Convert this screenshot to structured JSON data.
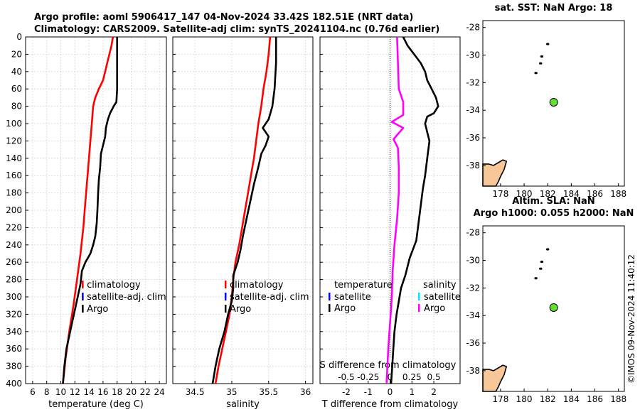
{
  "chart_data": {
    "title_line1": "Argo profile: aoml 5906417_147 04-Nov-2024 33.42S 182.51E (NRT data)",
    "title_line2": "Climatology: CARS2009. Satellite-adj clim: synTS_20241104.nc (0.76d earlier)",
    "depth": {
      "ticks": [
        0,
        20,
        40,
        60,
        80,
        100,
        120,
        140,
        160,
        180,
        200,
        220,
        240,
        260,
        280,
        300,
        320,
        340,
        360,
        380,
        400
      ],
      "ylim": [
        0,
        400
      ]
    },
    "panels": [
      {
        "type": "line",
        "name": "temperature",
        "xlabel": "temperature (deg C)",
        "xlim": [
          5,
          25
        ],
        "xticks": [
          6,
          8,
          10,
          12,
          14,
          16,
          18,
          20,
          22,
          24
        ],
        "legend": {
          "labels": [
            "climatology",
            "satellite-adj. clim",
            "Argo"
          ],
          "colors": [
            "#ff0000",
            "#0000ff",
            "#000000"
          ]
        },
        "series": [
          {
            "name": "climatology",
            "color": "#ff0000",
            "points": [
              [
                17.4,
                0
              ],
              [
                17.2,
                10
              ],
              [
                16.9,
                20
              ],
              [
                16.6,
                30
              ],
              [
                16.3,
                40
              ],
              [
                16.0,
                50
              ],
              [
                15.4,
                60
              ],
              [
                14.9,
                70
              ],
              [
                14.6,
                80
              ],
              [
                14.4,
                100
              ],
              [
                14.1,
                130
              ],
              [
                13.8,
                160
              ],
              [
                13.5,
                190
              ],
              [
                13.2,
                220
              ],
              [
                12.8,
                250
              ],
              [
                12.3,
                280
              ],
              [
                11.8,
                310
              ],
              [
                11.2,
                340
              ],
              [
                10.7,
                370
              ],
              [
                10.3,
                400
              ]
            ]
          },
          {
            "name": "Argo",
            "color": "#000000",
            "points": [
              [
                18.0,
                0
              ],
              [
                18.0,
                20
              ],
              [
                18.0,
                40
              ],
              [
                18.0,
                60
              ],
              [
                17.9,
                75
              ],
              [
                17.5,
                80
              ],
              [
                17.0,
                88
              ],
              [
                16.7,
                95
              ],
              [
                16.4,
                105
              ],
              [
                16.3,
                115
              ],
              [
                16.0,
                125
              ],
              [
                15.7,
                135
              ],
              [
                15.6,
                150
              ],
              [
                15.4,
                165
              ],
              [
                15.3,
                180
              ],
              [
                15.2,
                200
              ],
              [
                15.1,
                215
              ],
              [
                14.9,
                230
              ],
              [
                14.6,
                240
              ],
              [
                14.2,
                250
              ],
              [
                13.5,
                260
              ],
              [
                13.0,
                270
              ],
              [
                12.8,
                285
              ],
              [
                12.4,
                300
              ],
              [
                12.0,
                315
              ],
              [
                11.6,
                330
              ],
              [
                11.2,
                345
              ],
              [
                10.8,
                360
              ],
              [
                10.5,
                380
              ],
              [
                10.3,
                400
              ]
            ]
          }
        ]
      },
      {
        "type": "line",
        "name": "salinity",
        "xlabel": "salinity",
        "xlim": [
          34.2,
          36.1
        ],
        "xticks": [
          34.5,
          35,
          35.5,
          36
        ],
        "xtick_labels": [
          "34.5",
          "35",
          "35.5",
          "36"
        ],
        "legend": {
          "labels": [
            "climatology",
            "satellite-adj. clim",
            "Argo"
          ],
          "colors": [
            "#ff0000",
            "#0000ff",
            "#000000"
          ]
        },
        "series": [
          {
            "name": "climatology",
            "color": "#ff0000",
            "points": [
              [
                35.52,
                0
              ],
              [
                35.5,
                20
              ],
              [
                35.47,
                40
              ],
              [
                35.43,
                60
              ],
              [
                35.4,
                80
              ],
              [
                35.36,
                100
              ],
              [
                35.33,
                120
              ],
              [
                35.3,
                140
              ],
              [
                35.26,
                160
              ],
              [
                35.22,
                180
              ],
              [
                35.18,
                200
              ],
              [
                35.14,
                220
              ],
              [
                35.1,
                240
              ],
              [
                35.05,
                260
              ],
              [
                35.02,
                280
              ],
              [
                35.0,
                300
              ],
              [
                34.97,
                320
              ],
              [
                34.92,
                340
              ],
              [
                34.87,
                360
              ],
              [
                34.82,
                380
              ],
              [
                34.78,
                400
              ]
            ]
          },
          {
            "name": "Argo",
            "color": "#000000",
            "points": [
              [
                35.6,
                0
              ],
              [
                35.6,
                30
              ],
              [
                35.58,
                60
              ],
              [
                35.55,
                80
              ],
              [
                35.5,
                95
              ],
              [
                35.42,
                105
              ],
              [
                35.5,
                115
              ],
              [
                35.46,
                125
              ],
              [
                35.4,
                135
              ],
              [
                35.36,
                150
              ],
              [
                35.3,
                170
              ],
              [
                35.25,
                190
              ],
              [
                35.2,
                210
              ],
              [
                35.15,
                230
              ],
              [
                35.12,
                245
              ],
              [
                35.08,
                260
              ],
              [
                35.02,
                275
              ],
              [
                35.02,
                290
              ],
              [
                35.0,
                305
              ],
              [
                34.95,
                320
              ],
              [
                34.9,
                340
              ],
              [
                34.83,
                360
              ],
              [
                34.78,
                380
              ],
              [
                34.74,
                400
              ]
            ]
          }
        ]
      },
      {
        "type": "line",
        "name": "difference",
        "xlabel": "T difference from climatology",
        "xlim": [
          -3.2,
          3.2
        ],
        "xticks": [
          -2,
          -1,
          0,
          1,
          2
        ],
        "secondary_axis": {
          "label": "S difference from climatology",
          "ticks": [
            -0.5,
            -0.25,
            0,
            0.25,
            0.5
          ],
          "tick_labels": [
            "-0.5",
            "-0.25",
            "0",
            "0.25",
            "0.5"
          ]
        },
        "legend": {
          "temperature_header": "temperature",
          "salinity_header": "salinity",
          "temperature_labels": [
            "satellite",
            "Argo"
          ],
          "temperature_colors": [
            "#0000ff",
            "#000000"
          ],
          "salinity_labels": [
            "satellite",
            "Argo"
          ],
          "salinity_colors": [
            "#00e5ff",
            "#ff00ff"
          ]
        },
        "series": [
          {
            "name": "T Argo",
            "color": "#000000",
            "points": [
              [
                0.6,
                0
              ],
              [
                0.8,
                10
              ],
              [
                1.1,
                20
              ],
              [
                1.4,
                30
              ],
              [
                1.6,
                40
              ],
              [
                1.7,
                50
              ],
              [
                1.9,
                60
              ],
              [
                2.1,
                70
              ],
              [
                2.2,
                80
              ],
              [
                2.0,
                88
              ],
              [
                1.7,
                92
              ],
              [
                1.6,
                100
              ],
              [
                1.7,
                110
              ],
              [
                1.8,
                120
              ],
              [
                1.7,
                140
              ],
              [
                1.6,
                160
              ],
              [
                1.5,
                175
              ],
              [
                1.4,
                195
              ],
              [
                1.3,
                215
              ],
              [
                1.2,
                235
              ],
              [
                0.9,
                255
              ],
              [
                0.7,
                275
              ],
              [
                0.5,
                290
              ],
              [
                0.4,
                305
              ],
              [
                0.3,
                320
              ],
              [
                0.2,
                340
              ],
              [
                0.15,
                360
              ],
              [
                0.1,
                380
              ],
              [
                0.05,
                400
              ]
            ]
          },
          {
            "name": "S Argo",
            "color": "#ff00ff",
            "points": [
              [
                0.08,
                0
              ],
              [
                0.09,
                30
              ],
              [
                0.1,
                60
              ],
              [
                0.15,
                75
              ],
              [
                0.15,
                90
              ],
              [
                0.02,
                98
              ],
              [
                0.15,
                105
              ],
              [
                0.04,
                118
              ],
              [
                0.09,
                128
              ],
              [
                0.1,
                150
              ],
              [
                0.1,
                180
              ],
              [
                0.08,
                210
              ],
              [
                0.05,
                240
              ],
              [
                0.03,
                270
              ],
              [
                0.02,
                300
              ],
              [
                0.0,
                330
              ],
              [
                -0.02,
                360
              ],
              [
                -0.03,
                380
              ],
              [
                -0.04,
                400
              ]
            ]
          }
        ]
      }
    ],
    "map_top": {
      "title": "sat. SST: NaN Argo: 18",
      "xlim": [
        176.5,
        188.5
      ],
      "ylim": [
        -39.5,
        -27.5
      ],
      "xticks": [
        178,
        180,
        182,
        184,
        186,
        188
      ],
      "yticks": [
        -28,
        -30,
        -32,
        -34,
        -36,
        -38
      ],
      "marker": {
        "lon": 182.51,
        "lat": -33.42,
        "color": "#66dd33"
      },
      "track": [
        [
          182.0,
          -29.2
        ],
        [
          181.5,
          -30.1
        ],
        [
          181.4,
          -30.6
        ],
        [
          181.0,
          -31.3
        ]
      ]
    },
    "map_bottom": {
      "title_line1": "Altim. SLA: NaN",
      "title_line2": "Argo h1000: 0.055 h2000: NaN",
      "xlim": [
        176.5,
        188.5
      ],
      "ylim": [
        -39.5,
        -27.5
      ],
      "xticks": [
        178,
        180,
        182,
        184,
        186,
        188
      ],
      "yticks": [
        -28,
        -30,
        -32,
        -34,
        -36,
        -38
      ],
      "marker": {
        "lon": 182.51,
        "lat": -33.42,
        "color": "#66dd33"
      },
      "track": [
        [
          182.0,
          -29.2
        ],
        [
          181.5,
          -30.1
        ],
        [
          181.4,
          -30.6
        ],
        [
          181.0,
          -31.3
        ]
      ]
    },
    "credit": "©IMOS 09-Nov-2024 11:40:12"
  }
}
